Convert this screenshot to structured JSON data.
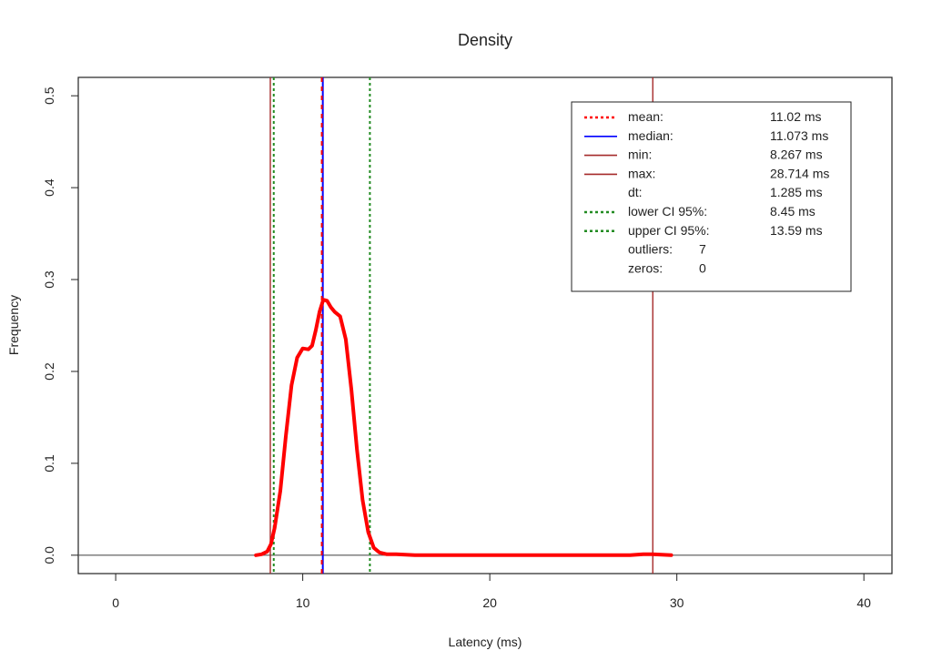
{
  "chart_data": {
    "type": "line",
    "title": "Density",
    "xlabel": "Latency (ms)",
    "ylabel": "Frequency",
    "xlim": [
      -2,
      41.5
    ],
    "ylim": [
      -0.02,
      0.52
    ],
    "xticks": [
      0,
      10,
      20,
      30,
      40
    ],
    "yticks": [
      0.0,
      0.1,
      0.2,
      0.3,
      0.4,
      0.5
    ],
    "xtick_labels": [
      "0",
      "10",
      "20",
      "30",
      "40"
    ],
    "ytick_labels": [
      "0.0",
      "0.1",
      "0.2",
      "0.3",
      "0.4",
      "0.5"
    ],
    "grid": false,
    "legend_position": "top-right",
    "colors": {
      "density": "#ff0000",
      "mean": "#ff0000",
      "median": "#0000ff",
      "minmax": "#a52a2a",
      "ci": "#228b22",
      "baseline": "#555555"
    },
    "series": [
      {
        "x": [
          7.5,
          7.8,
          8.1,
          8.3,
          8.5,
          8.8,
          9.1,
          9.4,
          9.7,
          10.0,
          10.3,
          10.5,
          10.7,
          10.9,
          11.1,
          11.3,
          11.5,
          11.7,
          12.0,
          12.3,
          12.6,
          12.9,
          13.2,
          13.5,
          13.8,
          14.1,
          14.5,
          15.0,
          16.0,
          18.0,
          20.0,
          22.0,
          24.0,
          26.0,
          27.5,
          28.2,
          28.7,
          29.2,
          29.7
        ],
        "y": [
          0.0,
          0.001,
          0.004,
          0.012,
          0.03,
          0.07,
          0.13,
          0.185,
          0.215,
          0.225,
          0.224,
          0.228,
          0.245,
          0.265,
          0.278,
          0.277,
          0.27,
          0.265,
          0.26,
          0.235,
          0.18,
          0.115,
          0.06,
          0.025,
          0.008,
          0.003,
          0.001,
          0.001,
          0.0,
          0.0,
          0.0,
          0.0,
          0.0,
          0.0,
          0.0,
          0.001,
          0.001,
          0.0005,
          0.0
        ]
      }
    ],
    "vlines": {
      "mean": 11.02,
      "median": 11.073,
      "min": 8.267,
      "max": 28.714,
      "lower_ci": 8.45,
      "upper_ci": 13.59
    },
    "legend": [
      {
        "label": "mean:",
        "value": "11.02 ms",
        "line": "dotted",
        "color": "#ff0000"
      },
      {
        "label": "median:",
        "value": "11.073 ms",
        "line": "solid",
        "color": "#0000ff"
      },
      {
        "label": "min:",
        "value": "8.267 ms",
        "line": "solid",
        "color": "#a52a2a"
      },
      {
        "label": "max:",
        "value": "28.714 ms",
        "line": "solid",
        "color": "#a52a2a"
      },
      {
        "label": "dt:",
        "value": "1.285 ms",
        "line": "none",
        "color": ""
      },
      {
        "label": "lower CI 95%:",
        "value": "8.45 ms",
        "line": "dotted",
        "color": "#228b22"
      },
      {
        "label": "upper CI 95%:",
        "value": "13.59 ms",
        "line": "dotted",
        "color": "#228b22"
      },
      {
        "label": "outliers:",
        "value": "7",
        "line": "none",
        "color": ""
      },
      {
        "label": "zeros:",
        "value": "0",
        "line": "none",
        "color": ""
      }
    ]
  }
}
